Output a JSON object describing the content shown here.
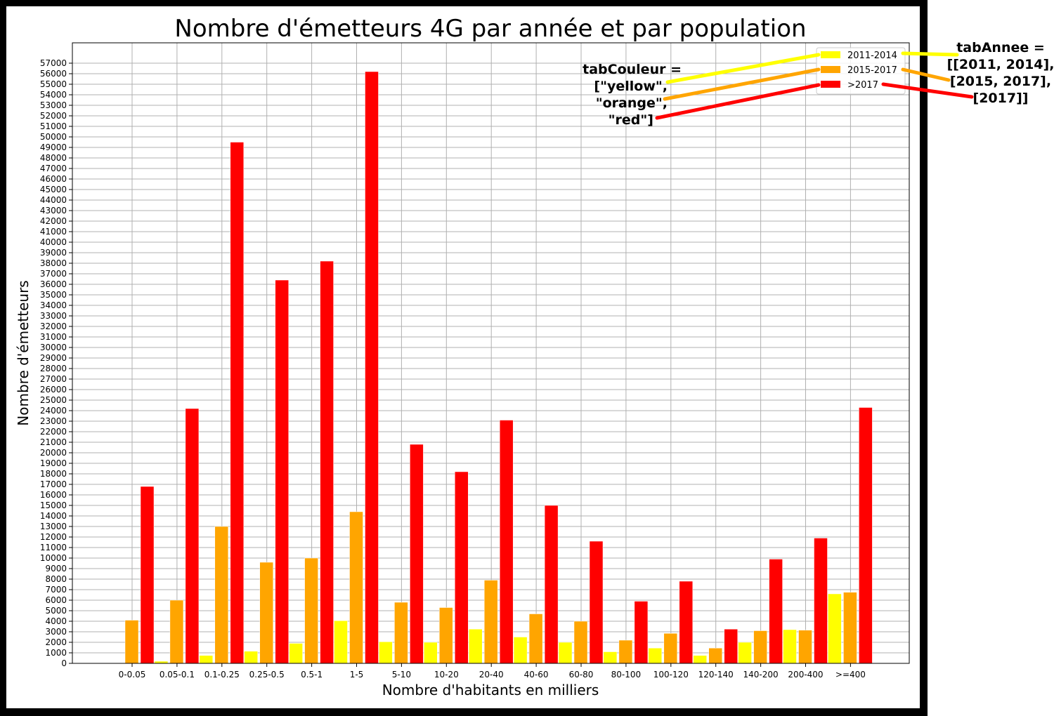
{
  "chart_data": {
    "type": "bar",
    "title": "Nombre d'émetteurs 4G par année et par population",
    "xlabel": "Nombre d'habitants en milliers",
    "ylabel": "Nombre d'émetteurs",
    "ylim": [
      0,
      59000
    ],
    "ytick_step": 1000,
    "ytick_max": 57000,
    "grid": true,
    "legend_position": "top-right",
    "categories": [
      "0-0.05",
      "0.05-0.1",
      "0.1-0.25",
      "0.25-0.5",
      "0.5-1",
      "1-5",
      "5-10",
      "10-20",
      "20-40",
      "40-60",
      "60-80",
      "80-100",
      "100-120",
      "120-140",
      "140-200",
      "200-400",
      ">=400"
    ],
    "series": [
      {
        "name": "2011-2014",
        "color": "#ffff00",
        "values": [
          50,
          200,
          750,
          1150,
          1900,
          4050,
          2050,
          2000,
          3250,
          2500,
          2000,
          1100,
          1450,
          750,
          2000,
          3200,
          6600
        ]
      },
      {
        "name": "2015-2017",
        "color": "#ffa500",
        "values": [
          4100,
          6000,
          13000,
          9600,
          10000,
          14400,
          5800,
          5300,
          7900,
          4700,
          4000,
          2200,
          2850,
          1450,
          3100,
          3150,
          6750
        ]
      },
      {
        "name": ">2017",
        "color": "#ff0000",
        "values": [
          16800,
          24200,
          49500,
          36400,
          38200,
          56200,
          20800,
          18200,
          23100,
          15000,
          11600,
          5900,
          7800,
          3250,
          9900,
          11900,
          24300
        ]
      }
    ]
  },
  "annotations": {
    "tab_couleur": [
      "tabCouleur =",
      "[\"yellow\",",
      "\"orange\",",
      "\"red\"]"
    ],
    "tab_annee": [
      "tabAnnee =",
      "[[2011, 2014],",
      "[2015, 2017],",
      "[2017]]"
    ],
    "arrow_colors": [
      "#ffff00",
      "#ffa500",
      "#ff0000"
    ]
  }
}
